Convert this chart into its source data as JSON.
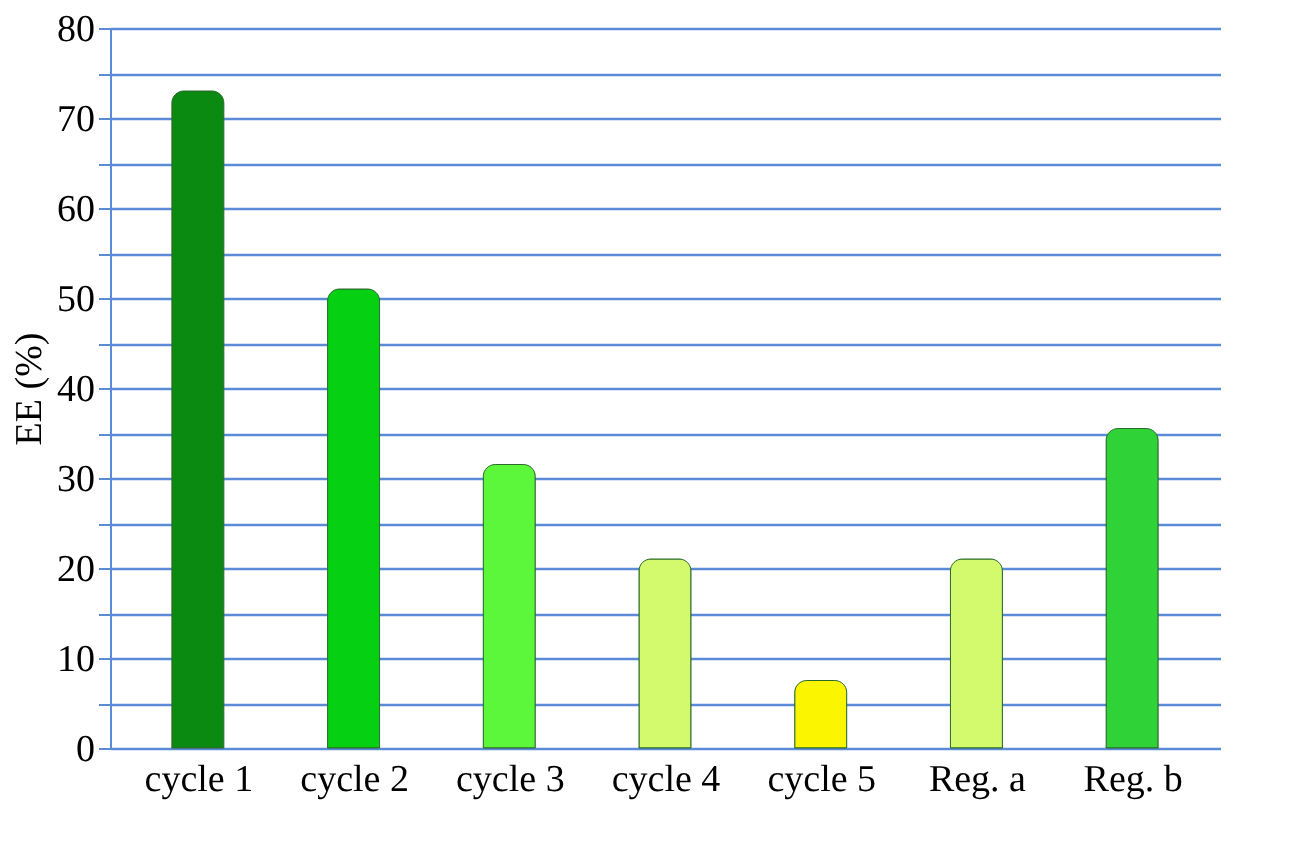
{
  "chart_data": {
    "type": "bar",
    "ylabel": "EE (%)",
    "categories": [
      "cycle 1",
      "cycle 2",
      "cycle 3",
      "cycle 4",
      "cycle 5",
      "Reg. a",
      "Reg. b"
    ],
    "values": [
      73,
      51,
      31.5,
      21,
      7.5,
      21,
      35.5
    ],
    "colors": [
      "#0b8a12",
      "#06d012",
      "#5cf73a",
      "#d2fa6c",
      "#fbf500",
      "#d2fa6c",
      "#2fd237"
    ],
    "ylim": [
      0,
      80
    ],
    "yticks": [
      0,
      {
        "value": 5,
        "label": null
      },
      10,
      {
        "value": 15,
        "label": null
      },
      20,
      {
        "value": 25,
        "label": null
      },
      30,
      {
        "value": 35,
        "label": null
      },
      40,
      {
        "value": 45,
        "label": null
      },
      50,
      {
        "value": 55,
        "label": null
      },
      60,
      {
        "value": 65,
        "label": null
      },
      70,
      {
        "value": 75,
        "label": null
      },
      80
    ],
    "grid": "y"
  }
}
